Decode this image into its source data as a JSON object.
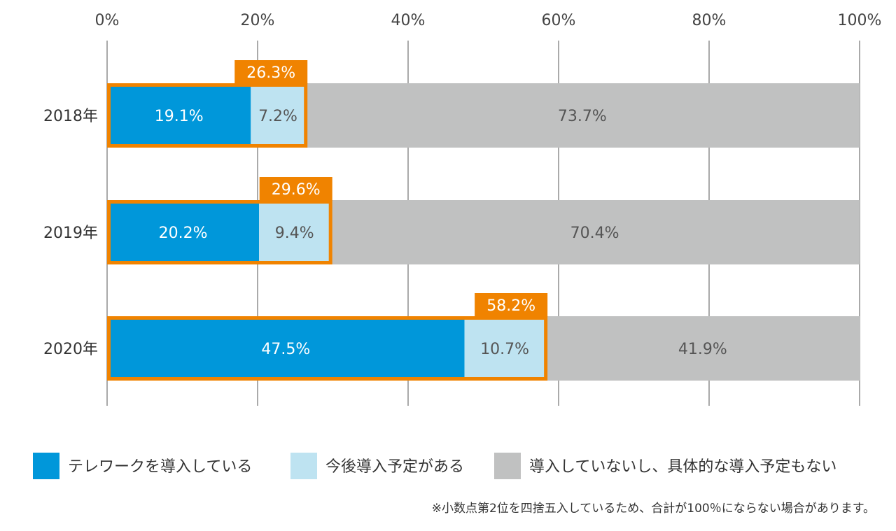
{
  "chart_data": {
    "type": "bar",
    "orientation": "horizontal",
    "stacked": true,
    "unit": "%",
    "categories": [
      "2018年",
      "2019年",
      "2020年"
    ],
    "series": [
      {
        "name": "テレワークを導入している",
        "values": [
          19.1,
          20.2,
          47.5
        ],
        "labels": [
          "19.1%",
          "20.2%",
          "47.5%"
        ],
        "color": "#0097da",
        "label_color": "#ffffff"
      },
      {
        "name": "今後導入予定がある",
        "values": [
          7.2,
          9.4,
          10.7
        ],
        "labels": [
          "7.2%",
          "9.4%",
          "10.7%"
        ],
        "color": "#bee3f1",
        "label_color": "#555555"
      },
      {
        "name": "導入していないし、具体的な導入予定もない",
        "values": [
          73.7,
          70.4,
          41.9
        ],
        "labels": [
          "73.7%",
          "70.4%",
          "41.9%"
        ],
        "color": "#c0c1c1",
        "label_color": "#555555"
      }
    ],
    "totals": {
      "values": [
        26.3,
        29.6,
        58.2
      ],
      "labels": [
        "26.3%",
        "29.6%",
        "58.2%"
      ],
      "color": "#f08300"
    },
    "xlim": [
      0,
      100
    ],
    "xticks": [
      0,
      20,
      40,
      60,
      80,
      100
    ],
    "xtick_labels": [
      "0%",
      "20%",
      "40%",
      "60%",
      "80%",
      "100%"
    ],
    "grid": true,
    "axis_position": "top",
    "legend_position": "bottom",
    "grid_color": "#555555"
  },
  "note": "※小数点第2位を四捨五入しているため、合計が100％にならない場合があります。"
}
